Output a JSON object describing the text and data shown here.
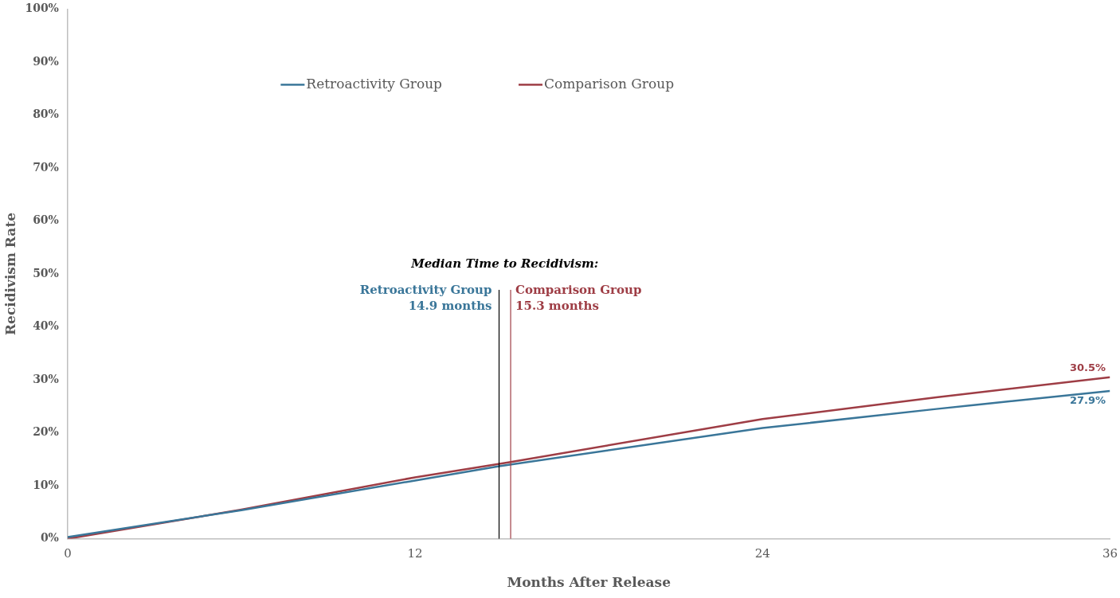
{
  "chart_data": {
    "type": "line",
    "xlabel": "Months After Release",
    "ylabel": "Recidivism Rate",
    "series": [
      {
        "name": "Retroactivity Group",
        "color": "#3a7699",
        "x": [
          0,
          6,
          12,
          14.9,
          24,
          30,
          36
        ],
        "values": [
          0.3,
          5.4,
          11.0,
          13.7,
          20.9,
          24.5,
          27.9
        ],
        "value_labels": [
          null,
          null,
          null,
          null,
          null,
          null,
          "27.9%"
        ]
      },
      {
        "name": "Comparison Group",
        "color": "#9e3d45",
        "x": [
          0,
          6,
          12,
          15.3,
          24,
          30,
          36
        ],
        "values": [
          0,
          5.5,
          11.6,
          14.5,
          22.6,
          26.7,
          30.5
        ],
        "value_labels": [
          null,
          null,
          null,
          null,
          null,
          null,
          "30.5%"
        ]
      }
    ],
    "xlim": [
      0,
      36
    ],
    "xticks": [
      0,
      12,
      24,
      36
    ],
    "ylim": [
      0,
      100
    ],
    "yticks": [
      {
        "value": 0,
        "label": "0%"
      },
      {
        "value": 10,
        "label": "10%"
      },
      {
        "value": 20,
        "label": "20%"
      },
      {
        "value": 30,
        "label": "30%"
      },
      {
        "value": 40,
        "label": "40%"
      },
      {
        "value": 50,
        "label": "50%"
      },
      {
        "value": 60,
        "label": "60%"
      },
      {
        "value": 70,
        "label": "70%"
      },
      {
        "value": 80,
        "label": "80%"
      },
      {
        "value": 90,
        "label": "90%"
      },
      {
        "value": 100,
        "label": "100%"
      }
    ],
    "ref_lines": [
      {
        "axis": "x",
        "value": 14.9,
        "label": "Retroactivity Group\n14.9 months",
        "color": "#000000"
      },
      {
        "axis": "x",
        "value": 15.3,
        "label": "Comparison Group\n15.3 months",
        "color": "#9e3d45"
      }
    ],
    "annotations": [
      "Median Time to Recidivism:"
    ],
    "legend": "top",
    "marker": "none",
    "line_style": "solid"
  }
}
